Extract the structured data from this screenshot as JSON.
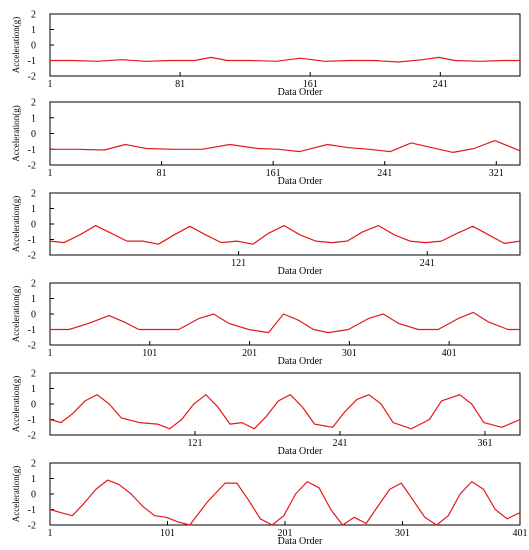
{
  "chart_data": [
    {
      "type": "line",
      "ylabel": "Acceleration(g)",
      "xlabel": "Data Order",
      "xlim": [
        1,
        290
      ],
      "ylim": [
        -2,
        2
      ],
      "xticks": [
        1,
        81,
        161,
        241
      ],
      "yticks": [
        2,
        1,
        0,
        -1,
        -2
      ],
      "series_color": "#e31a1c",
      "series": [
        {
          "x": [
            1,
            15,
            30,
            45,
            60,
            75,
            90,
            100,
            110,
            125,
            140,
            155,
            170,
            185,
            200,
            215,
            230,
            240,
            250,
            265,
            280,
            290
          ],
          "y": [
            -1.0,
            -1.0,
            -1.05,
            -0.95,
            -1.05,
            -1.0,
            -1.0,
            -0.8,
            -1.0,
            -1.0,
            -1.05,
            -0.85,
            -1.05,
            -1.0,
            -1.0,
            -1.1,
            -0.95,
            -0.8,
            -1.0,
            -1.05,
            -1.0,
            -1.0
          ]
        }
      ]
    },
    {
      "type": "line",
      "ylabel": "Acceleration(g)",
      "xlabel": "Data Order",
      "xlim": [
        1,
        338
      ],
      "ylim": [
        -2,
        2
      ],
      "xticks": [
        1,
        81,
        161,
        241,
        321
      ],
      "yticks": [
        2,
        1,
        0,
        -1,
        -2
      ],
      "series_color": "#e31a1c",
      "series": [
        {
          "x": [
            1,
            20,
            40,
            55,
            70,
            90,
            110,
            130,
            150,
            165,
            180,
            200,
            215,
            230,
            245,
            260,
            275,
            290,
            305,
            320,
            338
          ],
          "y": [
            -1.0,
            -1.0,
            -1.05,
            -0.7,
            -0.95,
            -1.0,
            -1.0,
            -0.7,
            -0.95,
            -1.0,
            -1.15,
            -0.7,
            -0.9,
            -1.0,
            -1.15,
            -0.6,
            -0.9,
            -1.2,
            -0.95,
            -0.45,
            -1.1
          ]
        }
      ]
    },
    {
      "type": "line",
      "ylabel": "Acceleration(g)",
      "xlabel": "Data Order",
      "xlim": [
        1,
        300
      ],
      "ylim": [
        -2,
        2
      ],
      "xticks": [
        121,
        241
      ],
      "yticks": [
        2,
        1,
        0,
        -1,
        -2
      ],
      "series_color": "#e31a1c",
      "series": [
        {
          "x": [
            1,
            10,
            20,
            30,
            40,
            50,
            60,
            70,
            80,
            90,
            100,
            110,
            120,
            130,
            140,
            150,
            160,
            170,
            180,
            190,
            200,
            210,
            220,
            230,
            240,
            250,
            260,
            270,
            280,
            290,
            300
          ],
          "y": [
            -1.1,
            -1.2,
            -0.7,
            -0.1,
            -0.6,
            -1.1,
            -1.1,
            -1.3,
            -0.7,
            -0.15,
            -0.7,
            -1.2,
            -1.1,
            -1.3,
            -0.6,
            -0.1,
            -0.7,
            -1.1,
            -1.2,
            -1.1,
            -0.5,
            -0.1,
            -0.7,
            -1.1,
            -1.2,
            -1.1,
            -0.6,
            -0.15,
            -0.7,
            -1.25,
            -1.1
          ]
        }
      ]
    },
    {
      "type": "line",
      "ylabel": "Acceleration(g)",
      "xlabel": "Data Order",
      "xlim": [
        1,
        472
      ],
      "ylim": [
        -2,
        2
      ],
      "xticks": [
        1,
        101,
        201,
        301,
        401
      ],
      "yticks": [
        2,
        1,
        0,
        -1,
        -2
      ],
      "series_color": "#e31a1c",
      "series": [
        {
          "x": [
            1,
            20,
            40,
            60,
            75,
            90,
            110,
            130,
            150,
            165,
            180,
            200,
            220,
            235,
            250,
            265,
            280,
            300,
            320,
            335,
            350,
            370,
            390,
            410,
            425,
            440,
            460,
            472
          ],
          "y": [
            -1.0,
            -1.0,
            -0.6,
            -0.1,
            -0.5,
            -1.0,
            -1.0,
            -1.0,
            -0.3,
            0.0,
            -0.6,
            -1.0,
            -1.2,
            0.0,
            -0.4,
            -1.0,
            -1.2,
            -1.0,
            -0.3,
            0.0,
            -0.6,
            -1.0,
            -1.0,
            -0.3,
            0.1,
            -0.5,
            -1.0,
            -1.0
          ]
        }
      ]
    },
    {
      "type": "line",
      "ylabel": "Acceleration(g)",
      "xlabel": "Data Order",
      "xlim": [
        1,
        390
      ],
      "ylim": [
        -2,
        2
      ],
      "xticks": [
        121,
        241,
        361
      ],
      "yticks": [
        2,
        1,
        0,
        -1,
        -2
      ],
      "series_color": "#e31a1c",
      "series": [
        {
          "x": [
            1,
            10,
            20,
            30,
            40,
            50,
            60,
            75,
            90,
            100,
            110,
            120,
            130,
            140,
            150,
            160,
            170,
            180,
            190,
            200,
            210,
            220,
            235,
            245,
            255,
            265,
            275,
            285,
            300,
            315,
            325,
            340,
            350,
            360,
            375,
            390
          ],
          "y": [
            -1.0,
            -1.2,
            -0.6,
            0.2,
            0.6,
            0.0,
            -0.9,
            -1.2,
            -1.3,
            -1.6,
            -1.0,
            0.0,
            0.6,
            -0.2,
            -1.3,
            -1.2,
            -1.6,
            -0.8,
            0.2,
            0.6,
            -0.2,
            -1.3,
            -1.5,
            -0.5,
            0.3,
            0.6,
            0.0,
            -1.2,
            -1.6,
            -1.0,
            0.2,
            0.6,
            0.0,
            -1.2,
            -1.5,
            -1.0
          ]
        }
      ]
    },
    {
      "type": "line",
      "ylabel": "Acceleration(g)",
      "xlabel": "Data Order",
      "xlim": [
        1,
        401
      ],
      "ylim": [
        -2,
        2
      ],
      "xticks": [
        1,
        101,
        201,
        301,
        401
      ],
      "yticks": [
        2,
        1,
        0,
        -1,
        -2
      ],
      "series_color": "#e31a1c",
      "series": [
        {
          "x": [
            1,
            10,
            20,
            30,
            40,
            50,
            60,
            70,
            80,
            90,
            100,
            110,
            120,
            135,
            150,
            160,
            170,
            180,
            190,
            200,
            210,
            220,
            230,
            240,
            250,
            260,
            270,
            280,
            290,
            300,
            310,
            320,
            330,
            340,
            350,
            360,
            370,
            380,
            390,
            401
          ],
          "y": [
            -1.0,
            -1.2,
            -1.4,
            -0.6,
            0.3,
            0.9,
            0.6,
            0.0,
            -0.8,
            -1.4,
            -1.5,
            -1.8,
            -2.0,
            -0.5,
            0.7,
            0.7,
            -0.4,
            -1.6,
            -2.0,
            -1.4,
            0.0,
            0.8,
            0.4,
            -1.0,
            -2.0,
            -1.5,
            -1.9,
            -0.8,
            0.3,
            0.7,
            -0.4,
            -1.5,
            -2.0,
            -1.4,
            0.0,
            0.8,
            0.3,
            -1.0,
            -1.6,
            -1.2
          ]
        }
      ]
    }
  ]
}
